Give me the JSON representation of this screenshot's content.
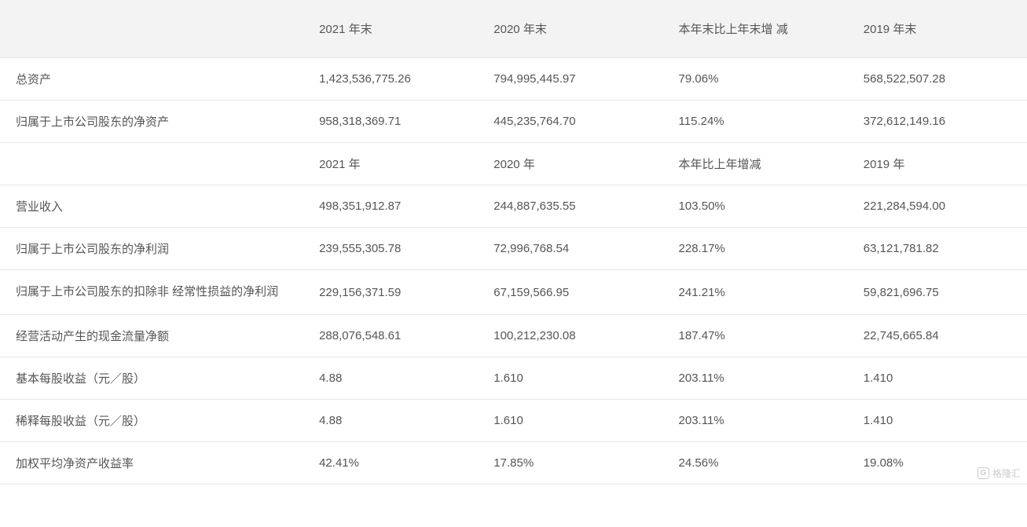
{
  "table": {
    "headers": {
      "col1": "",
      "col2": "2021 年末",
      "col3": "2020 年末",
      "col4": "本年末比上年末增 减",
      "col5": "2019 年末"
    },
    "rows": [
      {
        "label": "总资产",
        "v2021": "1,423,536,775.26",
        "v2020": "794,995,445.97",
        "change": "79.06%",
        "v2019": "568,522,507.28"
      },
      {
        "label": "归属于上市公司股东的净资产",
        "v2021": "958,318,369.71",
        "v2020": "445,235,764.70",
        "change": "115.24%",
        "v2019": "372,612,149.16"
      }
    ],
    "subheader": {
      "col1": "",
      "col2": "2021 年",
      "col3": "2020 年",
      "col4": "本年比上年增减",
      "col5": "2019 年"
    },
    "rows2": [
      {
        "label": "营业收入",
        "v2021": "498,351,912.87",
        "v2020": "244,887,635.55",
        "change": "103.50%",
        "v2019": "221,284,594.00"
      },
      {
        "label": "归属于上市公司股东的净利润",
        "v2021": "239,555,305.78",
        "v2020": "72,996,768.54",
        "change": "228.17%",
        "v2019": "63,121,781.82"
      },
      {
        "label": "归属于上市公司股东的扣除非 经常性损益的净利润",
        "v2021": "229,156,371.59",
        "v2020": "67,159,566.95",
        "change": "241.21%",
        "v2019": "59,821,696.75"
      },
      {
        "label": "经营活动产生的现金流量净额",
        "v2021": "288,076,548.61",
        "v2020": "100,212,230.08",
        "change": "187.47%",
        "v2019": "22,745,665.84"
      },
      {
        "label": "基本每股收益（元／股）",
        "v2021": "4.88",
        "v2020": "1.610",
        "change": "203.11%",
        "v2019": "1.410"
      },
      {
        "label": "稀释每股收益（元／股）",
        "v2021": "4.88",
        "v2020": "1.610",
        "change": "203.11%",
        "v2019": "1.410"
      },
      {
        "label": "加权平均净资产收益率",
        "v2021": "42.41%",
        "v2020": "17.85%",
        "change": "24.56%",
        "v2019": "19.08%"
      }
    ]
  },
  "watermark": {
    "icon": "G",
    "text": "格隆汇"
  },
  "styling": {
    "header_bg": "#f3f3f3",
    "text_color": "#555555",
    "border_color": "#e8e8e8",
    "font_size": 15,
    "watermark_color": "#cccccc"
  }
}
